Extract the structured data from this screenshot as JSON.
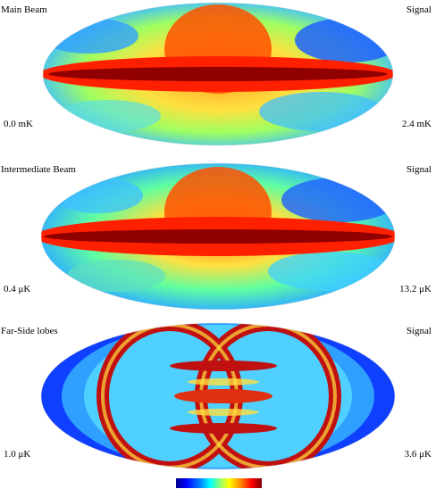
{
  "panels": [
    {
      "title": "Main Beam",
      "quantity": "Signal",
      "min_label": "0.0 mK",
      "max_label": "2.4 mK"
    },
    {
      "title": "Intermediate Beam",
      "quantity": "Signal",
      "min_label": "0.4 μK",
      "max_label": "13.2 μK"
    },
    {
      "title": "Far-Side lobes",
      "quantity": "Signal",
      "min_label": "1.0 μK",
      "max_label": "3.6 μK"
    }
  ],
  "colormap": {
    "name": "jet",
    "stops": [
      "#00008f",
      "#0000ff",
      "#0080ff",
      "#00ffff",
      "#80ff80",
      "#ffff00",
      "#ff8000",
      "#ff0000",
      "#800000"
    ]
  }
}
